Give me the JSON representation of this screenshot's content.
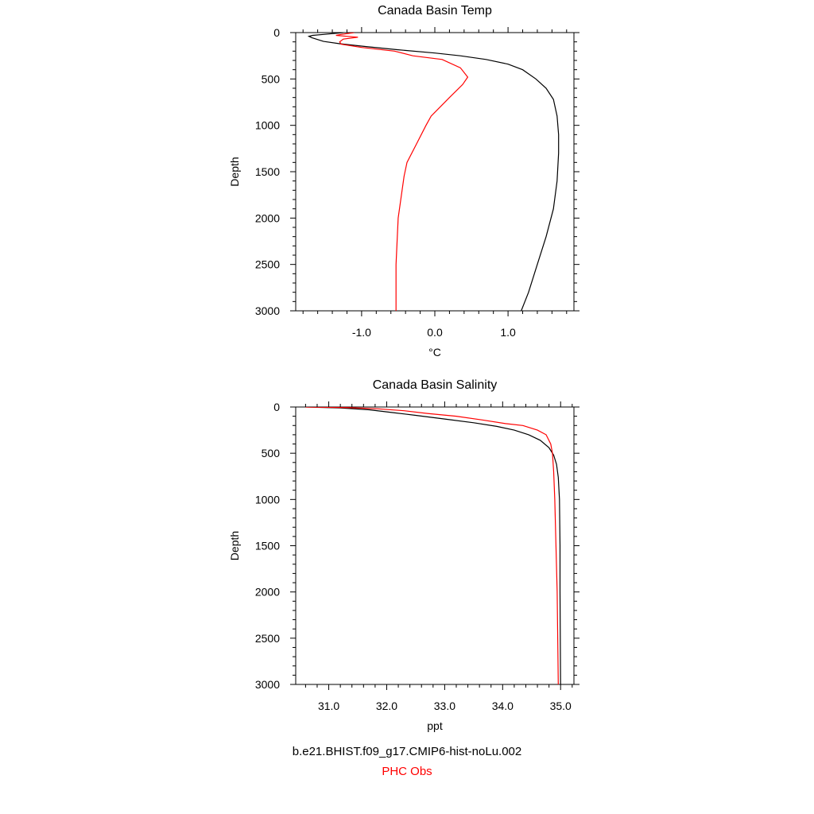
{
  "chart_data": [
    {
      "type": "line",
      "title": "Canada Basin Temp",
      "xlabel": "°C",
      "ylabel": "Depth",
      "xlim": [
        -1.9,
        1.9
      ],
      "ylim": [
        3000,
        0
      ],
      "y_inverted": true,
      "xticks": [
        -1.0,
        0.0,
        1.0
      ],
      "xtick_labels": [
        "-1.0",
        "0.0",
        "1.0"
      ],
      "yticks": [
        0,
        500,
        1000,
        1500,
        2000,
        2500,
        3000
      ],
      "ytick_labels": [
        "0",
        "500",
        "1000",
        "1500",
        "2000",
        "2500",
        "3000"
      ],
      "grid": false,
      "series": [
        {
          "name": "b.e21.BHIST.f09_g17.CMIP6-hist-noLu.002",
          "color": "#000000",
          "points": [
            [
              -1.25,
              0
            ],
            [
              -1.52,
              20
            ],
            [
              -1.67,
              30
            ],
            [
              -1.72,
              40
            ],
            [
              -1.68,
              55
            ],
            [
              -1.62,
              70
            ],
            [
              -1.52,
              95
            ],
            [
              -1.3,
              120
            ],
            [
              -0.95,
              150
            ],
            [
              -0.5,
              185
            ],
            [
              0.0,
              220
            ],
            [
              0.35,
              250
            ],
            [
              0.7,
              290
            ],
            [
              1.0,
              340
            ],
            [
              1.2,
              400
            ],
            [
              1.38,
              500
            ],
            [
              1.52,
              600
            ],
            [
              1.62,
              720
            ],
            [
              1.67,
              900
            ],
            [
              1.69,
              1100
            ],
            [
              1.69,
              1300
            ],
            [
              1.67,
              1600
            ],
            [
              1.62,
              1900
            ],
            [
              1.52,
              2200
            ],
            [
              1.4,
              2500
            ],
            [
              1.28,
              2800
            ],
            [
              1.18,
              3000
            ]
          ]
        },
        {
          "name": "PHC Obs",
          "color": "#ff0000",
          "points": [
            [
              -1.1,
              0
            ],
            [
              -1.28,
              20
            ],
            [
              -1.35,
              30
            ],
            [
              -1.2,
              40
            ],
            [
              -1.05,
              50
            ],
            [
              -1.25,
              70
            ],
            [
              -1.3,
              100
            ],
            [
              -1.28,
              125
            ],
            [
              -1.0,
              160
            ],
            [
              -0.55,
              200
            ],
            [
              -0.3,
              250
            ],
            [
              0.1,
              290
            ],
            [
              0.35,
              380
            ],
            [
              0.45,
              480
            ],
            [
              0.38,
              560
            ],
            [
              0.2,
              700
            ],
            [
              -0.05,
              900
            ],
            [
              -0.12,
              1000
            ],
            [
              -0.25,
              1200
            ],
            [
              -0.38,
              1400
            ],
            [
              -0.42,
              1550
            ],
            [
              -0.5,
              2000
            ],
            [
              -0.53,
              2500
            ],
            [
              -0.53,
              3000
            ]
          ]
        }
      ]
    },
    {
      "type": "line",
      "title": "Canada Basin Salinity",
      "xlabel": "ppt",
      "ylabel": "Depth",
      "xlim": [
        30.43,
        35.23
      ],
      "ylim": [
        3000,
        0
      ],
      "y_inverted": true,
      "xticks": [
        31.0,
        32.0,
        33.0,
        34.0,
        35.0
      ],
      "xtick_labels": [
        "31.0",
        "32.0",
        "33.0",
        "34.0",
        "35.0"
      ],
      "yticks": [
        0,
        500,
        1000,
        1500,
        2000,
        2500,
        3000
      ],
      "ytick_labels": [
        "0",
        "500",
        "1000",
        "1500",
        "2000",
        "2500",
        "3000"
      ],
      "grid": false,
      "series": [
        {
          "name": "b.e21.BHIST.f09_g17.CMIP6-hist-noLu.002",
          "color": "#000000",
          "points": [
            [
              30.6,
              0
            ],
            [
              31.2,
              10
            ],
            [
              31.7,
              30
            ],
            [
              32.1,
              60
            ],
            [
              32.5,
              90
            ],
            [
              33.0,
              130
            ],
            [
              33.5,
              170
            ],
            [
              33.9,
              210
            ],
            [
              34.2,
              250
            ],
            [
              34.45,
              300
            ],
            [
              34.65,
              360
            ],
            [
              34.8,
              440
            ],
            [
              34.88,
              520
            ],
            [
              34.93,
              620
            ],
            [
              34.96,
              760
            ],
            [
              34.98,
              1000
            ],
            [
              34.99,
              1500
            ],
            [
              34.99,
              2000
            ],
            [
              35.0,
              3000
            ]
          ]
        },
        {
          "name": "PHC Obs",
          "color": "#ff0000",
          "points": [
            [
              30.6,
              0
            ],
            [
              31.3,
              5
            ],
            [
              31.85,
              20
            ],
            [
              32.3,
              40
            ],
            [
              32.7,
              70
            ],
            [
              33.2,
              100
            ],
            [
              33.65,
              140
            ],
            [
              34.05,
              180
            ],
            [
              34.35,
              200
            ],
            [
              34.6,
              250
            ],
            [
              34.75,
              300
            ],
            [
              34.83,
              400
            ],
            [
              34.86,
              500
            ],
            [
              34.88,
              700
            ],
            [
              34.9,
              1000
            ],
            [
              34.92,
              1500
            ],
            [
              34.94,
              2000
            ],
            [
              34.95,
              2500
            ],
            [
              34.96,
              3000
            ]
          ]
        }
      ]
    }
  ],
  "legend": {
    "model_label": "b.e21.BHIST.f09_g17.CMIP6-hist-noLu.002",
    "model_color": "#000000",
    "obs_label": "PHC Obs",
    "obs_color": "#ff0000"
  }
}
